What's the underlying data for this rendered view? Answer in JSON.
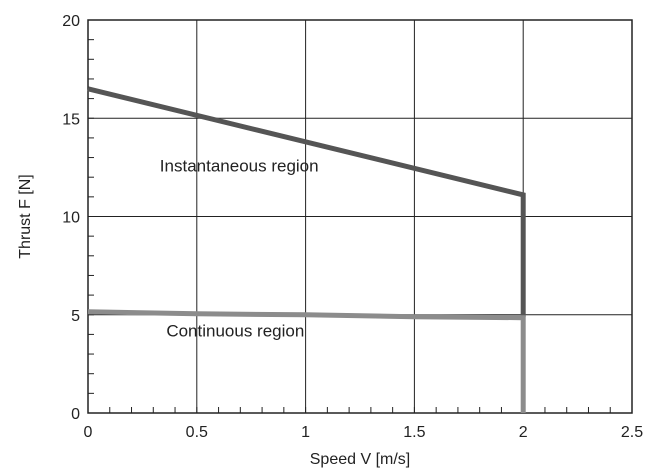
{
  "chart_data": {
    "type": "line",
    "title": "",
    "xlabel": "Speed V [m/s]",
    "ylabel": "Thrust F [N]",
    "xlim": [
      0,
      2.5
    ],
    "ylim": [
      0,
      20
    ],
    "grid": true,
    "x_ticks": [
      "0",
      "0.5",
      "1",
      "1.5",
      "2",
      "2.5"
    ],
    "y_ticks": [
      "0",
      "5",
      "10",
      "15",
      "20"
    ],
    "series": [
      {
        "region": "instantaneous",
        "color": "#555555",
        "points": [
          [
            0,
            16.5
          ],
          [
            2,
            11.1
          ],
          [
            2,
            4.9
          ]
        ]
      },
      {
        "region": "continuous",
        "color": "#8c8c8c",
        "points": [
          [
            0,
            5.15
          ],
          [
            0.5,
            5.05
          ],
          [
            1,
            5.0
          ],
          [
            1.5,
            4.9
          ],
          [
            2,
            4.85
          ],
          [
            2,
            0
          ]
        ]
      }
    ],
    "annotations": [
      {
        "text": "Instantaneous region",
        "x": 0.33,
        "y": 12.3
      },
      {
        "text": "Continuous region",
        "x": 0.36,
        "y": 3.9
      }
    ]
  }
}
